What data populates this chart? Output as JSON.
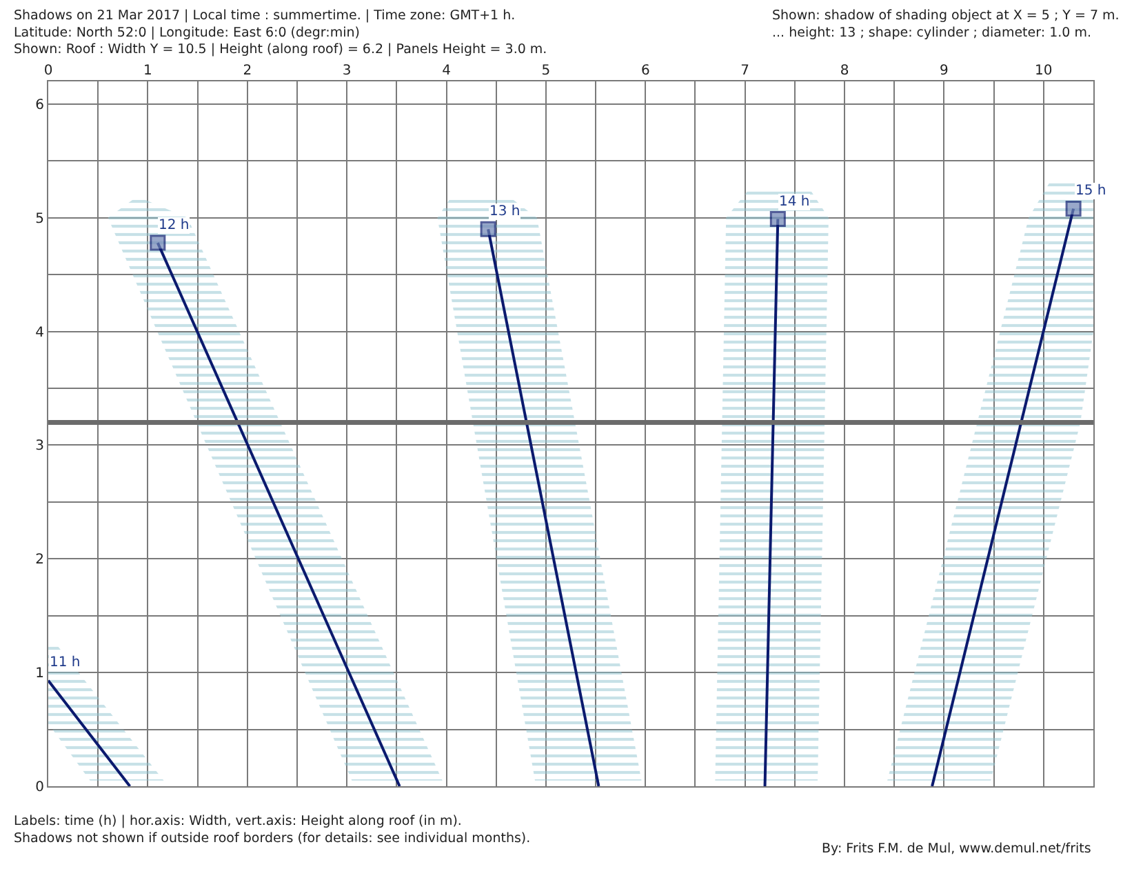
{
  "chart_data": {
    "type": "line",
    "xlim": [
      0,
      10.5
    ],
    "ylim": [
      0,
      6.2
    ],
    "xticks": [
      0,
      {
        "value": 0.5,
        "label": null
      },
      1,
      {
        "value": 1.5,
        "label": null
      },
      2,
      {
        "value": 2.5,
        "label": null
      },
      3,
      {
        "value": 3.5,
        "label": null
      },
      4,
      {
        "value": 4.5,
        "label": null
      },
      5,
      {
        "value": 5.5,
        "label": null
      },
      6,
      {
        "value": 6.5,
        "label": null
      },
      7,
      {
        "value": 7.5,
        "label": null
      },
      8,
      {
        "value": 8.5,
        "label": null
      },
      9,
      {
        "value": 9.5,
        "label": null
      },
      10
    ],
    "yticks": [
      0,
      {
        "value": 0.5,
        "label": null
      },
      1,
      {
        "value": 1.5,
        "label": null
      },
      2,
      {
        "value": 2.5,
        "label": null
      },
      3,
      {
        "value": 3.5,
        "label": null
      },
      4,
      {
        "value": 4.5,
        "label": null
      },
      5,
      {
        "value": 5.5,
        "label": null
      },
      6
    ],
    "grid": true,
    "line_style": "solid",
    "series": [
      {
        "type": "area",
        "color": "#8fc3cf",
        "x": [
          0,
          0.08,
          1.16,
          0.42,
          0
        ],
        "values": [
          1.25,
          1.25,
          0.05,
          0.05,
          0.55
        ]
      },
      {
        "type": "area",
        "color": "#8fc3cf",
        "x": [
          0.85,
          0.97,
          1.4,
          3.96,
          3.05,
          0.6
        ],
        "values": [
          5.16,
          5.16,
          5.0,
          0.05,
          0.05,
          5.0
        ]
      },
      {
        "type": "area",
        "color": "#8fc3cf",
        "x": [
          4.03,
          4.67,
          4.91,
          5.96,
          4.89,
          3.91
        ],
        "values": [
          5.16,
          5.16,
          5.0,
          0.05,
          0.05,
          5.0
        ]
      },
      {
        "type": "area",
        "color": "#8fc3cf",
        "x": [
          7.03,
          7.66,
          7.84,
          7.73,
          6.7,
          6.81
        ],
        "values": [
          5.24,
          5.24,
          5.0,
          0.05,
          0.05,
          5.0
        ]
      },
      {
        "type": "area",
        "color": "#8fc3cf",
        "x": [
          10.08,
          10.5,
          10.5,
          10.37,
          9.47,
          8.43,
          9.85
        ],
        "values": [
          5.34,
          5.34,
          4.0,
          3.2,
          0.05,
          0.05,
          5.0
        ]
      },
      {
        "color": "#0b1a6e",
        "marker": "none",
        "x": [
          0,
          0.82
        ],
        "values": [
          0.93,
          0
        ]
      },
      {
        "color": "#0b1a6e",
        "marker": "square",
        "x": [
          1.1,
          3.53
        ],
        "values": [
          4.78,
          0
        ]
      },
      {
        "color": "#0b1a6e",
        "marker": "square",
        "x": [
          4.42,
          5.53
        ],
        "values": [
          4.9,
          0
        ]
      },
      {
        "color": "#0b1a6e",
        "marker": "square",
        "x": [
          7.33,
          7.2
        ],
        "values": [
          4.99,
          0
        ]
      },
      {
        "color": "#0b1a6e",
        "marker": "square",
        "x": [
          10.3,
          8.88
        ],
        "values": [
          5.08,
          0
        ]
      }
    ],
    "ref_lines": [
      {
        "axis": "y",
        "value": 3.2,
        "color": "#6b6b6b"
      }
    ],
    "annotations": [
      "Shadows on 21 Mar 2017 | Local time : summertime. | Time zone: GMT+1 h.\nLatitude: North 52:0 | Longitude: East 6:0 (degr:min)\nShown: Roof : Width Y = 10.5 | Height (along roof) = 6.2 | Panels Height = 3.0 m.",
      "Shown: shadow of shading object at X = 5 ; Y = 7 m.\n... height: 13 ; shape: cylinder ; diameter: 1.0 m.",
      "Labels: time (h) | hor.axis: Width, vert.axis: Height along roof (in m).\nShadows not shown if outside roof borders (for details: see individual months).",
      "By: Frits F.M. de Mul, www.demul.net/frits",
      {
        "text": "11 h",
        "x": 0,
        "y": 0.93
      },
      {
        "text": "12 h",
        "x": 1.1,
        "y": 4.78
      },
      {
        "text": "13 h",
        "x": 4.42,
        "y": 4.9
      },
      {
        "text": "14 h",
        "x": 7.33,
        "y": 4.99
      },
      {
        "text": "15 h",
        "x": 10.3,
        "y": 5.08
      }
    ]
  }
}
